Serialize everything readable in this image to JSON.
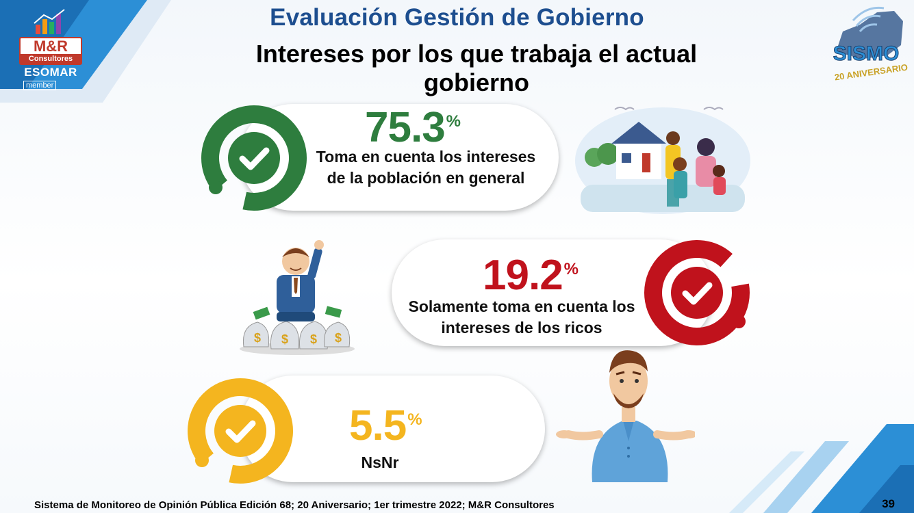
{
  "header": {
    "title": "Evaluación Gestión de Gobierno",
    "subtitle": "Intereses por los que trabaja el actual gobierno"
  },
  "logos": {
    "left": {
      "name": "M&R",
      "sub": "Consultores",
      "esomar": "ESOMAR",
      "member": "member"
    },
    "right": {
      "name": "SISMO",
      "anniversary": "20 ANIVERSARIO"
    }
  },
  "results": [
    {
      "value": "75.3",
      "symbol": "%",
      "label": "Toma en cuenta los intereses de la población en general",
      "color": "#2e7d3e"
    },
    {
      "value": "19.2",
      "symbol": "%",
      "label": "Solamente toma en cuenta los intereses de los ricos",
      "color": "#c0121c"
    },
    {
      "value": "5.5",
      "symbol": "%",
      "label": "NsNr",
      "color": "#f4b51f"
    }
  ],
  "footer": {
    "source": "Sistema de Monitoreo de Opinión Pública  Edición 68; 20 Aniversario;  1er trimestre 2022; M&R Consultores",
    "page": "39"
  },
  "icons": [
    "check-ring-icon",
    "family-illustration",
    "rich-man-illustration",
    "shrugging-man-illustration"
  ]
}
